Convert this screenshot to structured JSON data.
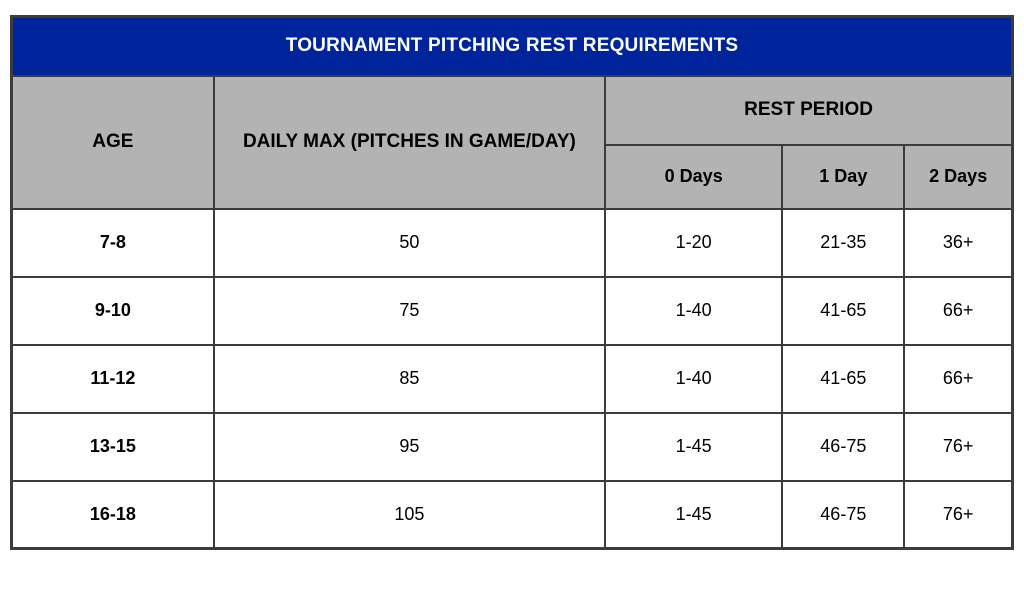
{
  "chart_data": {
    "type": "table",
    "title": "TOURNAMENT PITCHING REST REQUIREMENTS",
    "column_groups": {
      "age": "AGE",
      "daily_max": "DAILY MAX (PITCHES IN GAME/DAY)",
      "rest_period": "REST PERIOD"
    },
    "rest_period_columns": [
      "0 Days",
      "1 Day",
      "2 Days"
    ],
    "column_keys": [
      "age",
      "daily-max",
      "rest-0-days",
      "rest-1-day",
      "rest-2-days"
    ],
    "rows": [
      [
        "7-8",
        "50",
        "1-20",
        "21-35",
        "36+"
      ],
      [
        "9-10",
        "75",
        "1-40",
        "41-65",
        "66+"
      ],
      [
        "11-12",
        "85",
        "1-40",
        "41-65",
        "66+"
      ],
      [
        "13-15",
        "95",
        "1-45",
        "46-75",
        "76+"
      ],
      [
        "16-18",
        "105",
        "1-45",
        "46-75",
        "76+"
      ]
    ]
  },
  "colors": {
    "title_bg": "#00249B",
    "title_text": "#FFFFFF",
    "header_bg": "#B3B3B3",
    "border": "#3C3C3C",
    "body_bg": "#FFFFFF",
    "text": "#000000"
  }
}
